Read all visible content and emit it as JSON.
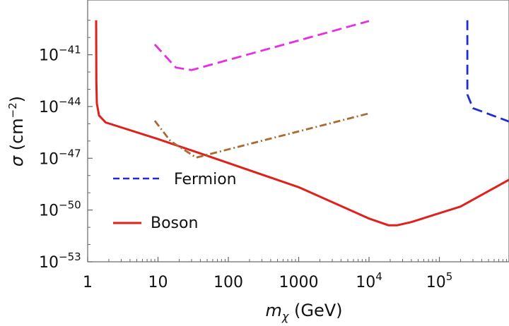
{
  "chart_data": {
    "type": "line",
    "xscale": "log",
    "yscale": "log",
    "xlim": [
      1,
      1000000
    ],
    "ylim": [
      1e-53,
      1e-39
    ],
    "xlabel_main": "m",
    "xlabel_sub": "χ",
    "xlabel_unit": " (GeV)",
    "ylabel_main": "σ",
    "ylabel_unit_pre": " (cm",
    "ylabel_unit_exp": "−2",
    "ylabel_unit_post": ")",
    "x_ticks": [
      {
        "value": 1,
        "base": "1",
        "exp": ""
      },
      {
        "value": 10,
        "base": "10",
        "exp": ""
      },
      {
        "value": 100,
        "base": "100",
        "exp": ""
      },
      {
        "value": 1000,
        "base": "1000",
        "exp": ""
      },
      {
        "value": 10000,
        "base": "10",
        "exp": "4"
      },
      {
        "value": 100000,
        "base": "10",
        "exp": "5"
      }
    ],
    "y_ticks": [
      {
        "value": 1e-41,
        "base": "10",
        "exp": "−41"
      },
      {
        "value": 1e-44,
        "base": "10",
        "exp": "−44"
      },
      {
        "value": 1e-47,
        "base": "10",
        "exp": "−47"
      },
      {
        "value": 1e-50,
        "base": "10",
        "exp": "−50"
      },
      {
        "value": 1e-53,
        "base": "10",
        "exp": "−53"
      }
    ],
    "series": [
      {
        "name": "Boson",
        "color": "#e0201b",
        "style": "solid",
        "points": [
          [
            1.32,
            1e-39
          ],
          [
            1.33,
            3e-43
          ],
          [
            1.35,
            1.5e-44
          ],
          [
            1.45,
            3e-45
          ],
          [
            1.8,
            1.2e-45
          ],
          [
            10,
            1.3e-46
          ],
          [
            50,
            1.4e-47
          ],
          [
            1000,
            2.1e-49
          ],
          [
            10000,
            3.2e-51
          ],
          [
            19000,
            1.3e-51
          ],
          [
            25000,
            1.3e-51
          ],
          [
            40000,
            2e-51
          ],
          [
            200000,
            1.6e-50
          ],
          [
            1000000,
            6e-49
          ]
        ]
      },
      {
        "name": "Fermion",
        "color": "#1f2ccf",
        "style": "dashed",
        "points": [
          [
            250000,
            1e-39
          ],
          [
            250000,
            5e-44
          ],
          [
            300000,
            8e-45
          ],
          [
            1000000,
            1.3e-45
          ]
        ]
      },
      {
        "name": "",
        "color": "#e72ee0",
        "style": "dashed",
        "points": [
          [
            9,
            4e-41
          ],
          [
            18,
            1.8e-42
          ],
          [
            30,
            1.3e-42
          ],
          [
            10000,
            9e-40
          ]
        ]
      },
      {
        "name": "",
        "color": "#a86b32",
        "style": "dashdot",
        "points": [
          [
            9,
            1.5e-45
          ],
          [
            15,
            1e-46
          ],
          [
            35,
            1.1e-47
          ],
          [
            10000,
            4e-45
          ]
        ]
      }
    ],
    "legend": {
      "placement": "bottom-left",
      "entries": [
        "Fermion",
        "Boson"
      ]
    },
    "grid": false
  }
}
